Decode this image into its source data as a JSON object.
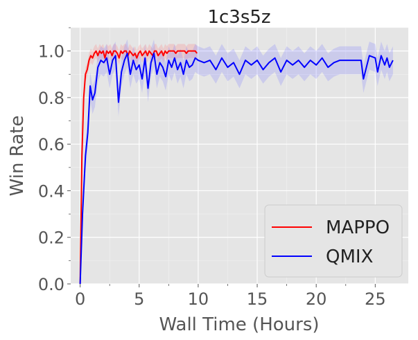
{
  "chart_data": {
    "type": "line",
    "title": "1c3s5z",
    "xlabel": "Wall Time (Hours)",
    "ylabel": "Win Rate",
    "xlim": [
      -0.8,
      27.8
    ],
    "ylim": [
      0,
      1.1
    ],
    "xticks": [
      "0",
      "5",
      "10",
      "15",
      "20",
      "25"
    ],
    "yticks": [
      "0.0",
      "0.2",
      "0.4",
      "0.6",
      "0.8",
      "1.0"
    ],
    "grid": true,
    "legend_position": "bottom-right",
    "series": [
      {
        "name": "MAPPO",
        "color": "#ff0000",
        "band_color": "#ff8080",
        "x": [
          0,
          0.15,
          0.3,
          0.45,
          0.6,
          0.75,
          0.9,
          1.05,
          1.2,
          1.35,
          1.5,
          1.65,
          1.8,
          1.95,
          2.1,
          2.25,
          2.4,
          2.55,
          2.7,
          2.85,
          3.0,
          3.15,
          3.3,
          3.45,
          3.6,
          3.75,
          3.9,
          4.05,
          4.2,
          4.35,
          4.5,
          4.65,
          4.8,
          4.95,
          5.1,
          5.25,
          5.4,
          5.55,
          5.7,
          5.85,
          6.0,
          6.15,
          6.3,
          6.45,
          6.6,
          6.75,
          6.9,
          7.05,
          7.2,
          7.35,
          7.5,
          7.65,
          7.8,
          7.95,
          8.1,
          8.25,
          8.4,
          8.55,
          8.7,
          8.85,
          9.0,
          9.15,
          9.3,
          9.45,
          9.6,
          9.75,
          9.9
        ],
        "y": [
          0.0,
          0.55,
          0.8,
          0.9,
          0.92,
          0.96,
          0.98,
          0.97,
          0.99,
          1.0,
          0.98,
          1.0,
          0.99,
          1.0,
          0.97,
          1.0,
          0.99,
          1.0,
          0.98,
          1.0,
          1.0,
          0.99,
          0.97,
          1.0,
          0.99,
          1.0,
          1.0,
          0.98,
          1.0,
          0.99,
          0.98,
          0.99,
          0.97,
          0.99,
          1.0,
          0.98,
          0.99,
          1.0,
          0.98,
          1.0,
          0.99,
          0.98,
          1.0,
          1.0,
          0.98,
          0.99,
          1.0,
          0.98,
          1.0,
          0.99,
          1.0,
          1.0,
          1.0,
          1.0,
          0.99,
          1.0,
          1.0,
          1.0,
          1.0,
          1.0,
          0.99,
          1.0,
          1.0,
          1.0,
          1.0,
          1.0,
          0.99
        ],
        "band": 0.03
      },
      {
        "name": "QMIX",
        "color": "#0000ff",
        "band_color": "#8080ff",
        "x": [
          0,
          0.2,
          0.45,
          0.65,
          0.85,
          1.05,
          1.25,
          1.5,
          1.75,
          2.0,
          2.25,
          2.5,
          2.75,
          3.0,
          3.25,
          3.5,
          3.75,
          4.0,
          4.25,
          4.5,
          4.75,
          5.0,
          5.25,
          5.5,
          5.75,
          6.0,
          6.25,
          6.5,
          6.75,
          7.0,
          7.25,
          7.5,
          7.75,
          8.0,
          8.25,
          8.5,
          8.75,
          9.0,
          9.25,
          9.5,
          9.75,
          10.0,
          10.5,
          11.0,
          11.5,
          12.0,
          12.5,
          13.0,
          13.5,
          14.0,
          14.5,
          15.0,
          15.5,
          16.0,
          16.5,
          17.0,
          17.5,
          18.0,
          18.5,
          19.0,
          19.5,
          20.0,
          20.5,
          21.0,
          21.5,
          22.0,
          22.5,
          23.0,
          23.5,
          23.8,
          24.0,
          24.5,
          25.0,
          25.2,
          25.5,
          25.8,
          26.0,
          26.2,
          26.5
        ],
        "y": [
          0.0,
          0.3,
          0.55,
          0.65,
          0.85,
          0.79,
          0.82,
          0.93,
          0.96,
          0.95,
          0.97,
          0.9,
          0.96,
          0.98,
          0.78,
          0.91,
          0.96,
          0.99,
          0.9,
          0.96,
          0.92,
          0.94,
          0.88,
          0.97,
          0.84,
          0.95,
          0.99,
          0.9,
          0.95,
          0.93,
          0.89,
          0.96,
          0.93,
          0.97,
          0.92,
          0.95,
          0.9,
          0.96,
          0.93,
          0.94,
          0.97,
          0.96,
          0.95,
          0.96,
          0.92,
          0.97,
          0.93,
          0.95,
          0.9,
          0.96,
          0.94,
          0.96,
          0.92,
          0.95,
          0.97,
          0.91,
          0.96,
          0.94,
          0.96,
          0.93,
          0.96,
          0.94,
          0.97,
          0.93,
          0.95,
          0.96,
          0.96,
          0.96,
          0.96,
          0.96,
          0.88,
          0.98,
          0.97,
          0.91,
          0.98,
          0.94,
          0.97,
          0.93,
          0.96
        ],
        "band": 0.06
      }
    ]
  }
}
